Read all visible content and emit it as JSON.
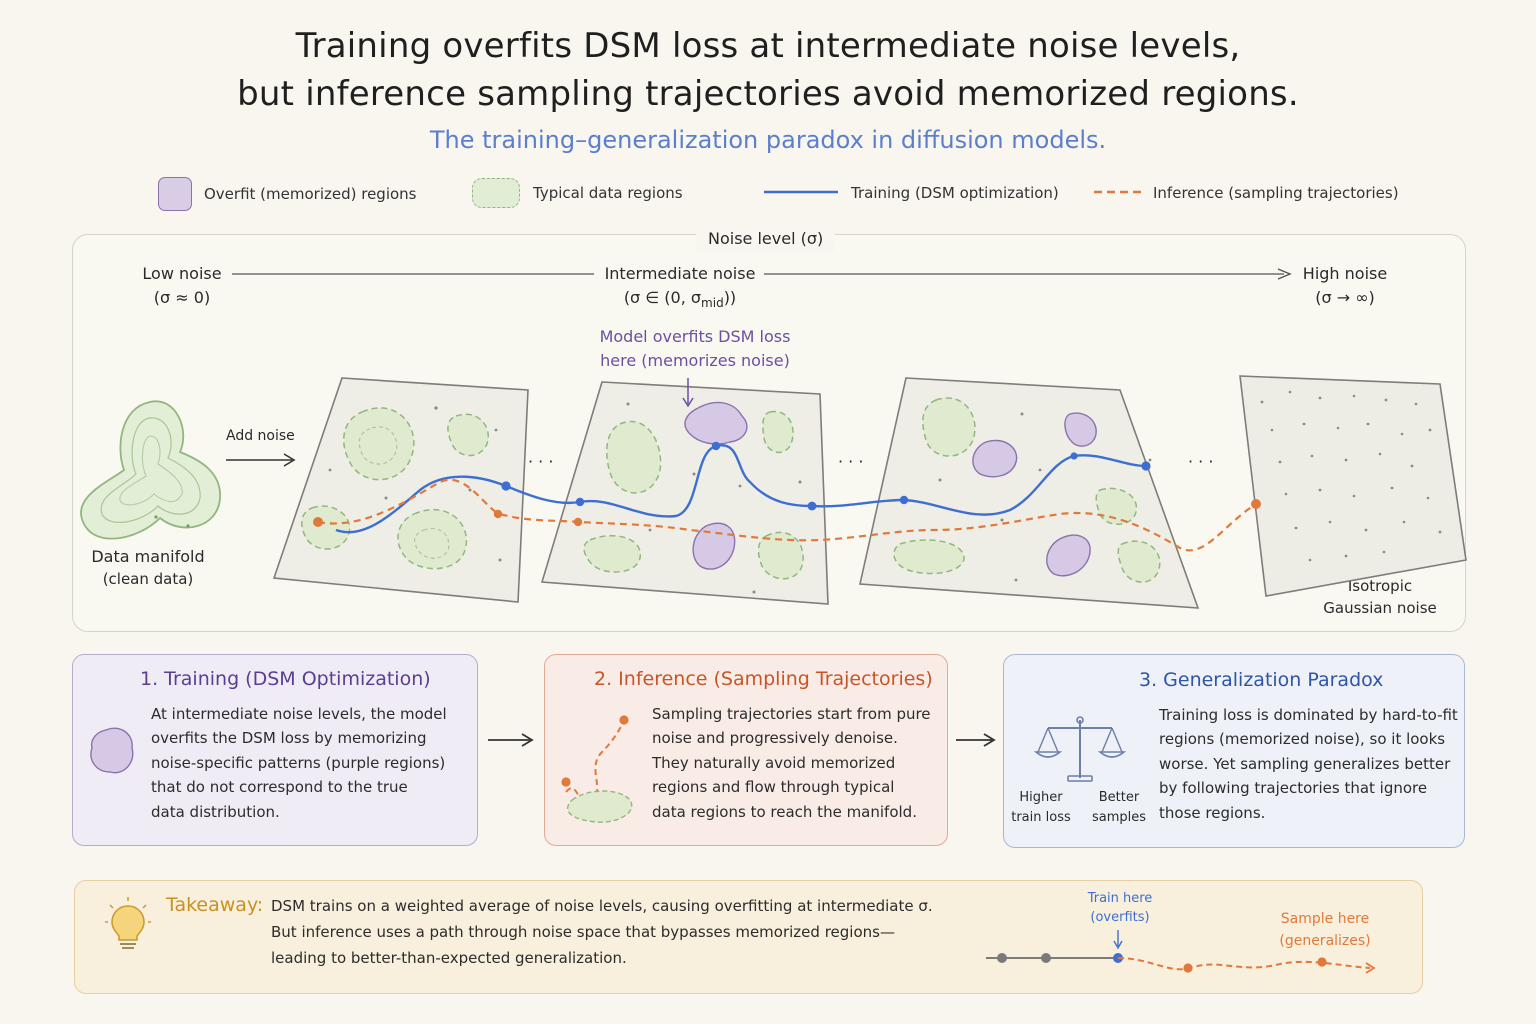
{
  "title": {
    "line1": "Training overfits DSM loss at intermediate noise levels,",
    "line2": "but inference sampling trajectories avoid memorized regions."
  },
  "subtitle": "The training–generalization paradox in diffusion models.",
  "legend": {
    "overfit": "Overfit (memorized) regions",
    "typical": "Typical data regions",
    "training": "Training (DSM optimization)",
    "inference": "Inference (sampling trajectories)"
  },
  "noise_axis": {
    "title": "Noise level (σ)",
    "low": "Low noise",
    "low_sub": "(σ ≈ 0)",
    "mid": "Intermediate noise",
    "mid_sub_prefix": "(σ ∈ (0, σ",
    "mid_sub_subscript": "mid",
    "mid_sub_suffix": "))",
    "high": "High noise",
    "high_sub": "(σ → ∞)"
  },
  "diagram": {
    "add_noise": "Add noise",
    "data_manifold": "Data manifold",
    "data_manifold_sub": "(clean data)",
    "overfit_callout_1": "Model overfits DSM loss",
    "overfit_callout_2": "here (memorizes noise)",
    "ellipsis": "· · ·",
    "isotropic_1": "Isotropic",
    "isotropic_2": "Gaussian noise"
  },
  "cards": {
    "training": {
      "title": "1. Training (DSM Optimization)",
      "lines": [
        "At intermediate noise levels, the model",
        "overfits the DSM loss by memorizing",
        "noise-specific patterns (purple regions)",
        "that do not correspond to the true",
        "data distribution."
      ]
    },
    "inference": {
      "title": "2. Inference (Sampling Trajectories)",
      "lines": [
        "Sampling trajectories start from pure",
        "noise and progressively denoise.",
        "They naturally avoid memorized",
        "regions and flow through typical",
        "data regions to reach the manifold."
      ]
    },
    "paradox": {
      "title": "3. Generalization Paradox",
      "lines": [
        "Training loss is dominated by hard-to-fit",
        "regions (memorized noise), so it looks",
        "worse. Yet sampling generalizes better",
        "by following trajectories that ignore",
        "those regions."
      ],
      "higher_1": "Higher",
      "higher_2": "train loss",
      "better_1": "Better",
      "better_2": "samples"
    }
  },
  "takeaway": {
    "label": "Takeaway:",
    "lines": [
      "DSM trains on a weighted average of noise levels, causing overfitting at intermediate σ.",
      "But inference uses a path through noise space that bypasses memorized regions—",
      "leading to better-than-expected generalization."
    ],
    "train_here_1": "Train here",
    "train_here_2": "(overfits)",
    "sample_here_1": "Sample here",
    "sample_here_2": "(generalizes)"
  },
  "colors": {
    "training_blue": "#3e6fd0",
    "inference_orange": "#e07a3c",
    "overfit_purple": "#8b72ad",
    "typical_green": "#93b67f"
  },
  "icons": [
    "lightbulb-icon",
    "balance-scale-icon",
    "arrow-right-icon"
  ]
}
